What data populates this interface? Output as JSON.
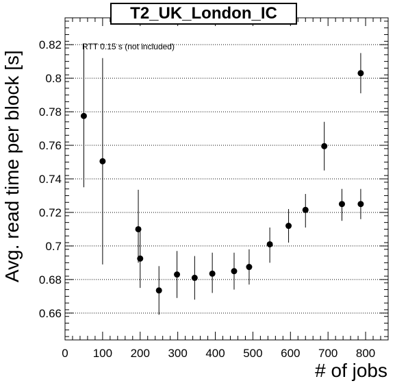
{
  "chart_data": {
    "type": "scatter",
    "title": "T2_UK_London_IC",
    "xlabel": "# of jobs",
    "ylabel": "Avg. read time per block [s]",
    "annotation": "RTT 0.15 s (not included)",
    "xlim": [
      0,
      860
    ],
    "ylim": [
      0.644,
      0.836
    ],
    "x_ticks": [
      0,
      100,
      200,
      300,
      400,
      500,
      600,
      700,
      800
    ],
    "x_tick_labels": [
      "0",
      "100",
      "200",
      "300",
      "400",
      "500",
      "600",
      "700",
      "800"
    ],
    "y_ticks": [
      0.66,
      0.68,
      0.7,
      0.72,
      0.74,
      0.76,
      0.78,
      0.8,
      0.82
    ],
    "y_tick_labels": [
      "0.66",
      "0.68",
      "0.7",
      "0.72",
      "0.74",
      "0.76",
      "0.78",
      "0.8",
      "0.82"
    ],
    "grid": "horizontal dotted",
    "series": [
      {
        "points": [
          {
            "x": 50,
            "y": 0.7775,
            "err_low": 0.735,
            "err_high": 0.82
          },
          {
            "x": 100,
            "y": 0.7505,
            "err_low": 0.689,
            "err_high": 0.812
          },
          {
            "x": 195,
            "y": 0.71,
            "err_low": 0.69,
            "err_high": 0.7335
          },
          {
            "x": 200,
            "y": 0.6925,
            "err_low": 0.675,
            "err_high": 0.709
          },
          {
            "x": 250,
            "y": 0.6735,
            "err_low": 0.659,
            "err_high": 0.688
          },
          {
            "x": 298,
            "y": 0.683,
            "err_low": 0.669,
            "err_high": 0.697
          },
          {
            "x": 345,
            "y": 0.681,
            "err_low": 0.668,
            "err_high": 0.694
          },
          {
            "x": 392,
            "y": 0.6835,
            "err_low": 0.672,
            "err_high": 0.696
          },
          {
            "x": 450,
            "y": 0.685,
            "err_low": 0.674,
            "err_high": 0.696
          },
          {
            "x": 490,
            "y": 0.6875,
            "err_low": 0.677,
            "err_high": 0.698
          },
          {
            "x": 545,
            "y": 0.701,
            "err_low": 0.69,
            "err_high": 0.711
          },
          {
            "x": 595,
            "y": 0.712,
            "err_low": 0.702,
            "err_high": 0.722
          },
          {
            "x": 640,
            "y": 0.7215,
            "err_low": 0.711,
            "err_high": 0.731
          },
          {
            "x": 690,
            "y": 0.7595,
            "err_low": 0.745,
            "err_high": 0.774
          },
          {
            "x": 737,
            "y": 0.725,
            "err_low": 0.715,
            "err_high": 0.734
          },
          {
            "x": 787,
            "y": 0.725,
            "err_low": 0.716,
            "err_high": 0.734
          },
          {
            "x": 787,
            "y": 0.803,
            "err_low": 0.791,
            "err_high": 0.815
          }
        ]
      }
    ]
  }
}
